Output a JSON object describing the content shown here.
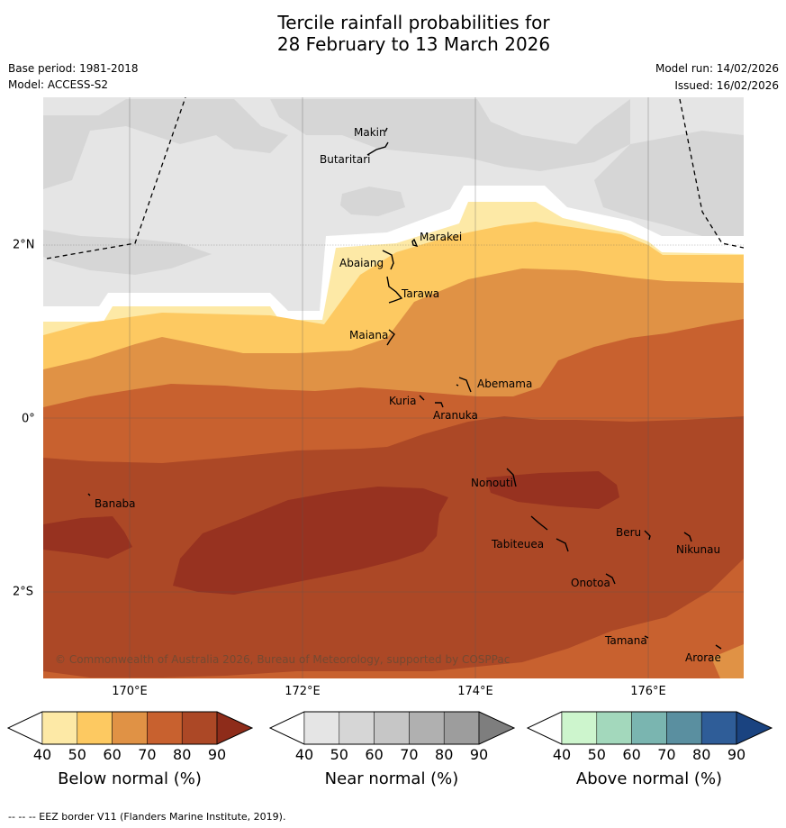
{
  "title": {
    "line1": "Tercile rainfall probabilities for",
    "line2": "28 February to 13 March 2026"
  },
  "meta": {
    "base_period": "Base period: 1981-2018",
    "model": "Model: ACCESS-S2",
    "model_run": "Model run: 14/02/2026",
    "issued": "Issued: 16/02/2026"
  },
  "map": {
    "longitude_labels": [
      "170°E",
      "172°E",
      "174°E",
      "176°E"
    ],
    "latitude_labels": [
      "2°N",
      "0°",
      "2°S"
    ],
    "places": {
      "makin": "Makin",
      "butaritari": "Butaritari",
      "marakei": "Marakei",
      "abaiang": "Abaiang",
      "tarawa": "Tarawa",
      "maiana": "Maiana",
      "abemama": "Abemama",
      "kuria": "Kuria",
      "aranuka": "Aranuka",
      "nonouti": "Nonouti",
      "banaba": "Banaba",
      "beru": "Beru",
      "tabiteuea": "Tabiteuea",
      "nikunau": "Nikunau",
      "onotoa": "Onotoa",
      "tamana": "Tamana",
      "arorae": "Arorae"
    },
    "copyright": "© Commonwealth of Australia 2026, Bureau of Meteorology, supported by COSPPac"
  },
  "colorbars": {
    "ticks": [
      "40",
      "50",
      "60",
      "70",
      "80",
      "90"
    ],
    "below": {
      "title": "Below normal (%)",
      "colors": [
        "#ffffff",
        "#fde9a6",
        "#fdc961",
        "#e09245",
        "#c8612f",
        "#ac4826",
        "#8e2c1a"
      ]
    },
    "near": {
      "title": "Near normal (%)",
      "colors": [
        "#ffffff",
        "#e5e5e5",
        "#d6d6d6",
        "#c6c6c6",
        "#b0b0b0",
        "#9d9d9d",
        "#7e7e7e"
      ]
    },
    "above": {
      "title": "Above normal (%)",
      "colors": [
        "#ffffff",
        "#cdf5cd",
        "#a3d8bc",
        "#7ab5b0",
        "#5a8fa0",
        "#2f5d98",
        "#1a4380"
      ]
    }
  },
  "footer": "--  --  -- EEZ border V11 (Flanders Marine Institute, 2019)."
}
